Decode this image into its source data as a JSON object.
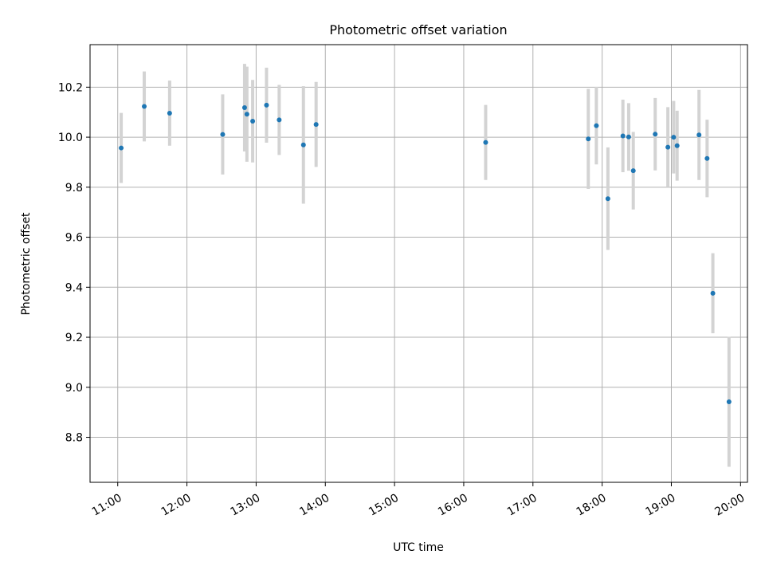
{
  "chart_data": {
    "type": "scatter",
    "title": "Photometric offset variation",
    "xlabel": "UTC time",
    "ylabel": "Photometric offset",
    "x_ticks": [
      "11:00",
      "12:00",
      "13:00",
      "14:00",
      "15:00",
      "16:00",
      "17:00",
      "18:00",
      "19:00",
      "20:00"
    ],
    "y_ticks": [
      "8.8",
      "9.0",
      "9.2",
      "9.4",
      "9.6",
      "9.8",
      "10.0",
      "10.2"
    ],
    "xlim": [
      "10:36",
      "20:06"
    ],
    "ylim": [
      8.62,
      10.37
    ],
    "grid": true,
    "marker_color": "#1f77b4",
    "errorbar_color": "#d3d3d3",
    "points": [
      {
        "t": "11:03",
        "y": 9.957,
        "err": 0.14
      },
      {
        "t": "11:23",
        "y": 10.123,
        "err": 0.14
      },
      {
        "t": "11:45",
        "y": 10.096,
        "err": 0.13
      },
      {
        "t": "12:31",
        "y": 10.011,
        "err": 0.16
      },
      {
        "t": "12:50",
        "y": 10.118,
        "err": 0.175
      },
      {
        "t": "12:52",
        "y": 10.092,
        "err": 0.19
      },
      {
        "t": "12:57",
        "y": 10.064,
        "err": 0.165
      },
      {
        "t": "13:09",
        "y": 10.128,
        "err": 0.15
      },
      {
        "t": "13:20",
        "y": 10.069,
        "err": 0.14
      },
      {
        "t": "13:41",
        "y": 9.969,
        "err": 0.235
      },
      {
        "t": "13:52",
        "y": 10.051,
        "err": 0.17
      },
      {
        "t": "16:19",
        "y": 9.979,
        "err": 0.15
      },
      {
        "t": "17:48",
        "y": 9.993,
        "err": 0.2
      },
      {
        "t": "17:55",
        "y": 10.046,
        "err": 0.155
      },
      {
        "t": "18:05",
        "y": 9.754,
        "err": 0.205
      },
      {
        "t": "18:18",
        "y": 10.005,
        "err": 0.145
      },
      {
        "t": "18:23",
        "y": 10.001,
        "err": 0.135
      },
      {
        "t": "18:27",
        "y": 9.866,
        "err": 0.155
      },
      {
        "t": "18:46",
        "y": 10.012,
        "err": 0.145
      },
      {
        "t": "18:57",
        "y": 9.96,
        "err": 0.16
      },
      {
        "t": "19:02",
        "y": 10.0,
        "err": 0.145
      },
      {
        "t": "19:05",
        "y": 9.966,
        "err": 0.14
      },
      {
        "t": "19:24",
        "y": 10.009,
        "err": 0.18
      },
      {
        "t": "19:31",
        "y": 9.915,
        "err": 0.155
      },
      {
        "t": "19:36",
        "y": 9.376,
        "err": 0.16
      },
      {
        "t": "19:50",
        "y": 8.942,
        "err": 0.26
      }
    ]
  }
}
